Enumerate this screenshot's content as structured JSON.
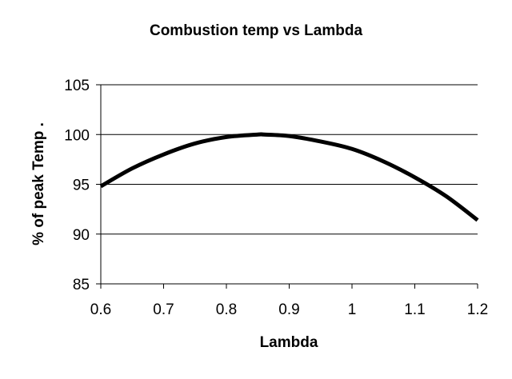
{
  "chart_data": {
    "type": "line",
    "title": "Combustion temp vs Lambda",
    "xlabel": "Lambda",
    "ylabel": "% of peak Temp   .",
    "xlim": [
      0.6,
      1.2
    ],
    "ylim": [
      85,
      105
    ],
    "x_ticks": [
      "0.6",
      "0.7",
      "0.8",
      "0.9",
      "1",
      "1.1",
      "1.2"
    ],
    "y_ticks": [
      "85",
      "90",
      "95",
      "100",
      "105"
    ],
    "grid": "horizontal",
    "legend": "none",
    "line_color": "#000000",
    "series": [
      {
        "x": [
          0.6,
          0.65,
          0.7,
          0.75,
          0.8,
          0.85,
          0.86,
          0.9,
          0.95,
          1.0,
          1.05,
          1.1,
          1.15,
          1.2
        ],
        "y": [
          94.8,
          96.6,
          98.0,
          99.1,
          99.75,
          100.0,
          100.0,
          99.85,
          99.3,
          98.55,
          97.3,
          95.7,
          93.8,
          91.4
        ]
      }
    ]
  }
}
